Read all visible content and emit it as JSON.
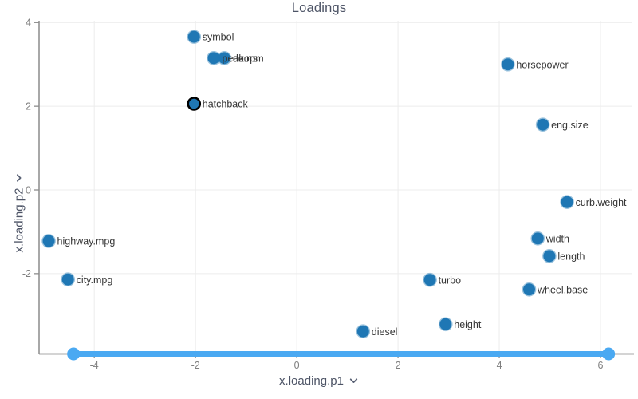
{
  "title": "Loadings",
  "colors": {
    "point_fill": "#1f77b4",
    "point_halo": "#1f77b473",
    "selected_stroke": "#000000",
    "slider": "#4aa9f2",
    "axis_line": "#8c8c8c",
    "grid": "#ececec",
    "tick_text": "#7f7f7f",
    "point_label": "#363636",
    "heading_text": "#4d5466"
  },
  "x_axis": {
    "label": "x.loading.p1",
    "icon": "chevron-down-icon",
    "ticks": [
      -4,
      -2,
      0,
      2,
      4,
      6
    ]
  },
  "y_axis": {
    "label": "x.loading.p2",
    "icon": "chevron-down-icon",
    "ticks": [
      -2,
      0,
      2,
      4
    ]
  },
  "range_slider": {
    "start": -4.41,
    "end": 6.16
  },
  "chart_data": {
    "type": "scatter",
    "title": "Loadings",
    "xlabel": "x.loading.p1",
    "ylabel": "x.loading.p2",
    "xlim": [
      -5.09,
      6.63
    ],
    "ylim": [
      -3.91,
      4.12
    ],
    "grid": true,
    "points": [
      {
        "label": "symbol",
        "x": -2.03,
        "y": 3.66,
        "selected": false
      },
      {
        "label": "peak.rpm",
        "x": -1.64,
        "y": 3.15,
        "selected": false
      },
      {
        "label": "doors",
        "x": -1.43,
        "y": 3.15,
        "selected": false
      },
      {
        "label": "hatchback",
        "x": -2.03,
        "y": 2.06,
        "selected": true
      },
      {
        "label": "horsepower",
        "x": 4.17,
        "y": 3.0,
        "selected": false
      },
      {
        "label": "eng.size",
        "x": 4.86,
        "y": 1.56,
        "selected": false
      },
      {
        "label": "curb.weight",
        "x": 5.34,
        "y": -0.29,
        "selected": false
      },
      {
        "label": "width",
        "x": 4.76,
        "y": -1.16,
        "selected": false
      },
      {
        "label": "length",
        "x": 4.99,
        "y": -1.58,
        "selected": false
      },
      {
        "label": "highway.mpg",
        "x": -4.9,
        "y": -1.22,
        "selected": false
      },
      {
        "label": "city.mpg",
        "x": -4.52,
        "y": -2.14,
        "selected": false
      },
      {
        "label": "turbo",
        "x": 2.63,
        "y": -2.15,
        "selected": false
      },
      {
        "label": "wheel.base",
        "x": 4.59,
        "y": -2.38,
        "selected": false
      },
      {
        "label": "diesel",
        "x": 1.31,
        "y": -3.38,
        "selected": false
      },
      {
        "label": "height",
        "x": 2.94,
        "y": -3.21,
        "selected": false
      }
    ]
  }
}
